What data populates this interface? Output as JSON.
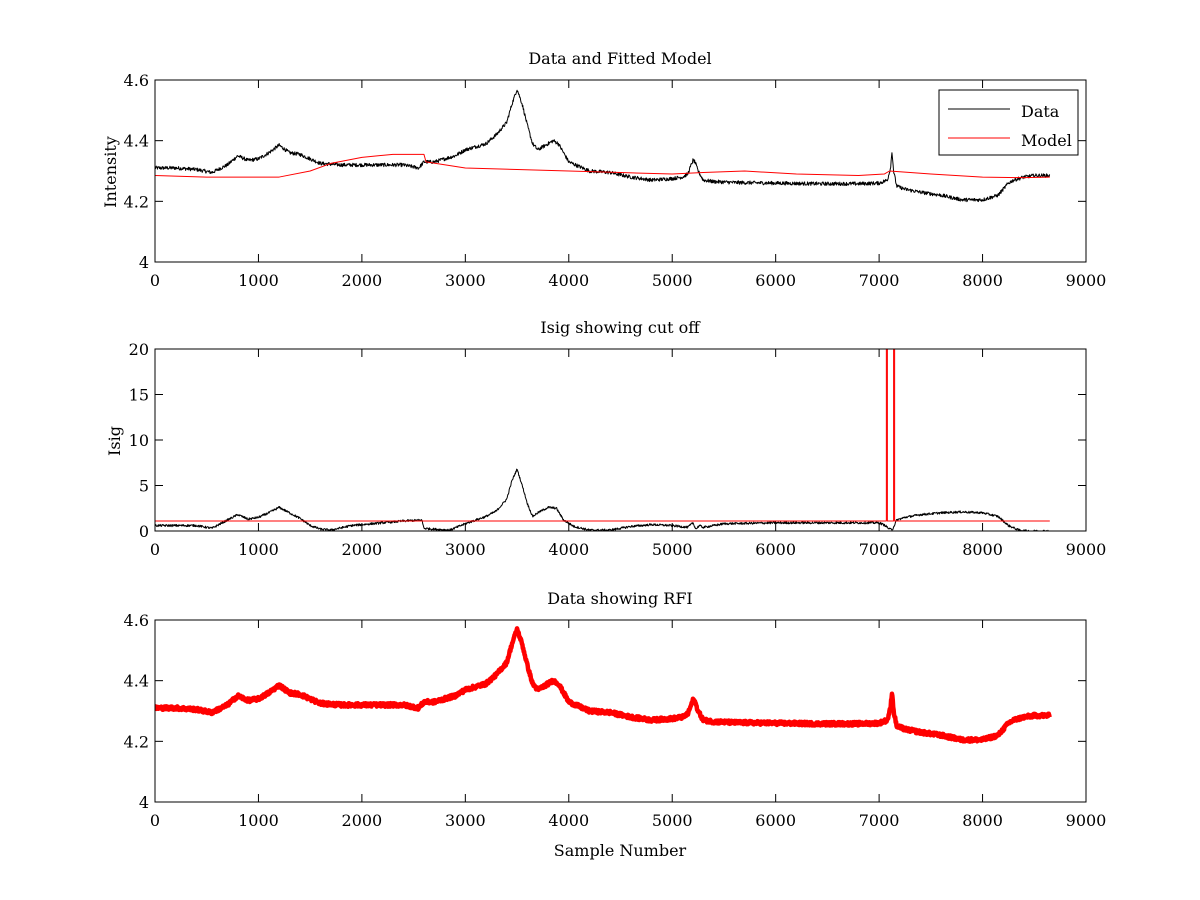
{
  "chart_data": [
    {
      "type": "line",
      "title": "Data and Fitted Model",
      "xlabel": "",
      "ylabel": "Intensity",
      "xlim": [
        0,
        9000
      ],
      "ylim": [
        4,
        4.6
      ],
      "xticks": [
        0,
        1000,
        2000,
        3000,
        4000,
        5000,
        6000,
        7000,
        8000,
        9000
      ],
      "yticks": [
        4,
        4.2,
        4.4,
        4.6
      ],
      "grid": false,
      "legend": {
        "placement": "top-right",
        "entries": [
          "Data",
          "Model"
        ]
      },
      "series": [
        {
          "name": "Data",
          "color": "#000000",
          "noise": 0.006,
          "x": [
            0,
            200,
            400,
            550,
            700,
            800,
            900,
            1000,
            1100,
            1200,
            1300,
            1400,
            1500,
            1600,
            1800,
            2000,
            2200,
            2400,
            2550,
            2600,
            2700,
            2900,
            3000,
            3100,
            3200,
            3300,
            3400,
            3450,
            3500,
            3550,
            3600,
            3650,
            3700,
            3800,
            3850,
            3900,
            4000,
            4200,
            4400,
            4600,
            4800,
            5000,
            5100,
            5150,
            5200,
            5220,
            5250,
            5300,
            5400,
            5600,
            6000,
            6400,
            6800,
            7000,
            7080,
            7110,
            7125,
            7140,
            7170,
            7250,
            7400,
            7600,
            7800,
            8000,
            8150,
            8250,
            8300,
            8400,
            8500,
            8650
          ],
          "y": [
            4.31,
            4.31,
            4.305,
            4.295,
            4.32,
            4.35,
            4.335,
            4.34,
            4.36,
            4.385,
            4.36,
            4.355,
            4.34,
            4.325,
            4.32,
            4.32,
            4.32,
            4.32,
            4.31,
            4.33,
            4.33,
            4.35,
            4.37,
            4.38,
            4.39,
            4.42,
            4.46,
            4.52,
            4.57,
            4.52,
            4.45,
            4.39,
            4.37,
            4.39,
            4.4,
            4.39,
            4.33,
            4.3,
            4.295,
            4.28,
            4.27,
            4.275,
            4.28,
            4.29,
            4.335,
            4.33,
            4.3,
            4.27,
            4.265,
            4.262,
            4.26,
            4.258,
            4.258,
            4.26,
            4.27,
            4.31,
            4.365,
            4.3,
            4.25,
            4.24,
            4.23,
            4.22,
            4.205,
            4.205,
            4.22,
            4.26,
            4.27,
            4.28,
            4.285,
            4.285
          ]
        },
        {
          "name": "Model",
          "color": "#ff0000",
          "noise": 0,
          "x": [
            0,
            500,
            1200,
            1500,
            1700,
            2000,
            2300,
            2600,
            2620,
            3000,
            3500,
            4000,
            4500,
            5000,
            5300,
            5700,
            6200,
            6800,
            7050,
            7100,
            7500,
            8000,
            8400,
            8650
          ],
          "y": [
            4.285,
            4.28,
            4.28,
            4.3,
            4.325,
            4.345,
            4.355,
            4.355,
            4.33,
            4.31,
            4.305,
            4.3,
            4.295,
            4.29,
            4.295,
            4.3,
            4.29,
            4.285,
            4.29,
            4.3,
            4.29,
            4.28,
            4.278,
            4.28
          ]
        }
      ]
    },
    {
      "type": "line",
      "title": "Isig showing cut off",
      "xlabel": "",
      "ylabel": "Isig",
      "xlim": [
        0,
        9000
      ],
      "ylim": [
        0,
        20
      ],
      "xticks": [
        0,
        1000,
        2000,
        3000,
        4000,
        5000,
        6000,
        7000,
        8000,
        9000
      ],
      "yticks": [
        0,
        5,
        10,
        15,
        20
      ],
      "grid": false,
      "series": [
        {
          "color": "#000000",
          "noise": 0.12,
          "x": [
            0,
            400,
            550,
            700,
            800,
            900,
            1000,
            1100,
            1200,
            1300,
            1400,
            1500,
            1600,
            1700,
            1900,
            2200,
            2400,
            2580,
            2600,
            2700,
            2850,
            3000,
            3200,
            3300,
            3400,
            3450,
            3500,
            3550,
            3600,
            3650,
            3700,
            3800,
            3880,
            3950,
            4050,
            4200,
            4400,
            4600,
            4800,
            5000,
            5150,
            5200,
            5230,
            5260,
            5300,
            5500,
            6000,
            6500,
            7000,
            7060,
            7100,
            7130,
            7170,
            7250,
            7400,
            7600,
            7800,
            8000,
            8150,
            8250,
            8350,
            8450,
            8650
          ],
          "y": [
            0.6,
            0.6,
            0.3,
            1.2,
            1.8,
            1.3,
            1.5,
            2.0,
            2.6,
            2.0,
            1.4,
            0.6,
            0.2,
            0.1,
            0.6,
            0.9,
            1.1,
            1.2,
            0.3,
            0.2,
            0.1,
            0.8,
            1.6,
            2.2,
            3.5,
            5.5,
            6.8,
            5.0,
            3.0,
            1.6,
            2.0,
            2.6,
            2.5,
            1.2,
            0.5,
            0.1,
            0.1,
            0.5,
            0.7,
            0.6,
            0.4,
            0.9,
            0.2,
            0.6,
            0.4,
            0.8,
            0.9,
            0.9,
            0.9,
            0.6,
            0.2,
            0.2,
            1.2,
            1.5,
            1.8,
            2.0,
            2.1,
            2.0,
            1.6,
            0.6,
            0.1,
            0.0,
            0.0
          ]
        },
        {
          "color": "#ff0000",
          "noise": 0,
          "x": [
            0,
            7070,
            7070,
            7080,
            7080,
            7140,
            7140,
            7150,
            7150,
            8650
          ],
          "y": [
            1.1,
            1.1,
            20,
            20,
            1.1,
            1.1,
            20,
            20,
            1.1,
            1.1
          ]
        }
      ]
    },
    {
      "type": "line",
      "title": "Data showing RFI",
      "xlabel": "Sample Number",
      "ylabel": "",
      "xlim": [
        0,
        9000
      ],
      "ylim": [
        4,
        4.6
      ],
      "xticks": [
        0,
        1000,
        2000,
        3000,
        4000,
        5000,
        6000,
        7000,
        8000,
        9000
      ],
      "yticks": [
        4,
        4.2,
        4.4,
        4.6
      ],
      "grid": false,
      "series": [
        {
          "color": "#ff0000",
          "noise": 0.006,
          "thick": true,
          "x": [
            0,
            200,
            400,
            550,
            700,
            800,
            900,
            1000,
            1100,
            1200,
            1300,
            1400,
            1500,
            1600,
            1800,
            2000,
            2200,
            2400,
            2550,
            2600,
            2700,
            2900,
            3000,
            3100,
            3200,
            3300,
            3400,
            3450,
            3500,
            3550,
            3600,
            3650,
            3700,
            3800,
            3850,
            3900,
            4000,
            4200,
            4400,
            4600,
            4800,
            5000,
            5100,
            5150,
            5200,
            5220,
            5250,
            5300,
            5400,
            5600,
            6000,
            6400,
            6800,
            7000,
            7080,
            7110,
            7125,
            7140,
            7170,
            7250,
            7400,
            7600,
            7800,
            8000,
            8150,
            8250,
            8300,
            8400,
            8500,
            8650
          ],
          "y": [
            4.31,
            4.31,
            4.305,
            4.295,
            4.32,
            4.35,
            4.335,
            4.34,
            4.36,
            4.385,
            4.36,
            4.355,
            4.34,
            4.325,
            4.32,
            4.32,
            4.32,
            4.32,
            4.31,
            4.33,
            4.33,
            4.35,
            4.37,
            4.38,
            4.39,
            4.42,
            4.46,
            4.52,
            4.57,
            4.52,
            4.45,
            4.39,
            4.37,
            4.39,
            4.4,
            4.39,
            4.33,
            4.3,
            4.295,
            4.28,
            4.27,
            4.275,
            4.28,
            4.29,
            4.335,
            4.33,
            4.3,
            4.27,
            4.265,
            4.262,
            4.26,
            4.258,
            4.258,
            4.26,
            4.27,
            4.31,
            4.365,
            4.3,
            4.25,
            4.24,
            4.23,
            4.22,
            4.205,
            4.205,
            4.22,
            4.26,
            4.27,
            4.28,
            4.285,
            4.285
          ]
        }
      ]
    }
  ]
}
